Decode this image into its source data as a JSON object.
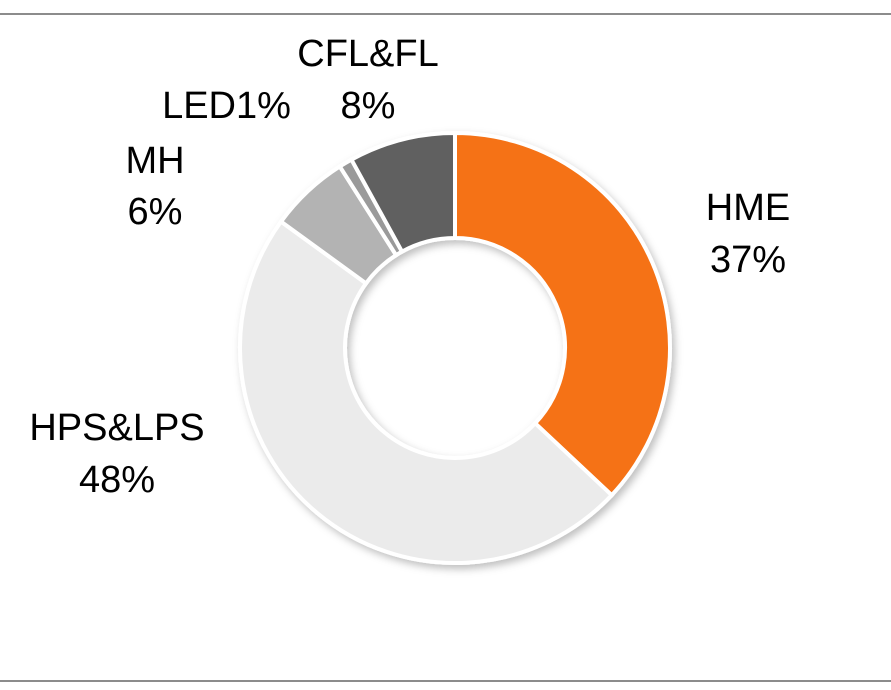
{
  "chart_data": {
    "type": "donut",
    "slices": [
      {
        "label": "HME",
        "percent_label": "37%",
        "value": 37,
        "color": "#f57214"
      },
      {
        "label": "HPS&LPS",
        "percent_label": "48%",
        "value": 48,
        "color": "#ebebeb"
      },
      {
        "label": "MH",
        "percent_label": "6%",
        "value": 6,
        "color": "#b3b3b3"
      },
      {
        "label": "LED",
        "percent_label": "1%",
        "value": 1,
        "color": "#9a9a9a"
      },
      {
        "label": "CFL&FL",
        "percent_label": "8%",
        "value": 8,
        "color": "#606060"
      }
    ]
  }
}
